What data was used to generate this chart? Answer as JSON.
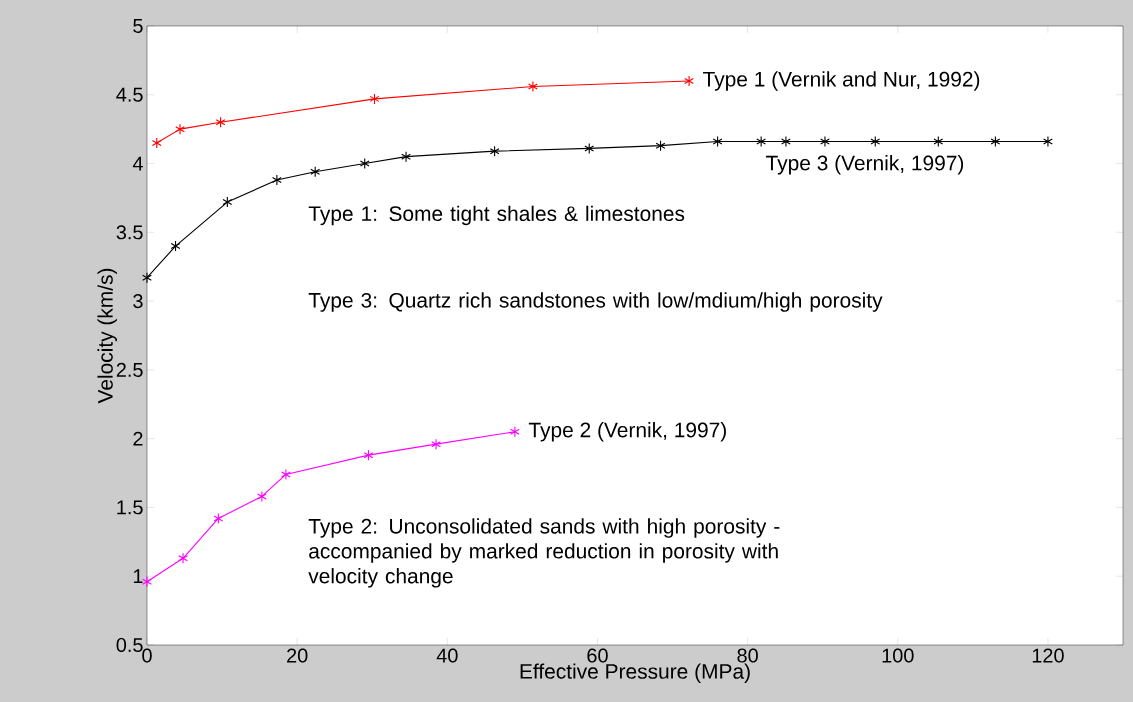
{
  "chart_data": {
    "type": "line",
    "xlabel": "Effective Pressure (MPa)",
    "ylabel": "Velocity (km/s)",
    "xlim": [
      0,
      130
    ],
    "ylim": [
      0.5,
      5
    ],
    "xticks": [
      0,
      20,
      40,
      60,
      80,
      100,
      120
    ],
    "yticks": [
      0.5,
      1,
      1.5,
      2,
      2.5,
      3,
      3.5,
      4,
      4.5,
      5
    ],
    "marker": "cross",
    "line_style": "solid",
    "grid": false,
    "legend": false,
    "series": [
      {
        "name": "Type 1 (Vernik and Nur, 1992)",
        "color": "#ff0000",
        "x": [
          1.3,
          4.4,
          9.8,
          30.3,
          51.4,
          72.2
        ],
        "values": [
          4.15,
          4.25,
          4.3,
          4.47,
          4.56,
          4.6
        ]
      },
      {
        "name": "Type 3 (Vernik, 1997)",
        "color": "#000000",
        "x": [
          0,
          3.8,
          10.7,
          17.3,
          22.4,
          29,
          34.5,
          46.3,
          58.9,
          68.4,
          76,
          81.8,
          85.1,
          90.3,
          97,
          105.4,
          113,
          120
        ],
        "values": [
          3.17,
          3.4,
          3.72,
          3.88,
          3.94,
          4.0,
          4.05,
          4.09,
          4.11,
          4.13,
          4.16,
          4.16,
          4.16,
          4.16,
          4.16,
          4.16,
          4.16,
          4.16
        ]
      },
      {
        "name": "Type 2 (Vernik, 1997)",
        "color": "#ff00ff",
        "x": [
          0,
          4.8,
          9.5,
          15.3,
          18.5,
          29.5,
          38.5,
          49
        ],
        "values": [
          0.96,
          1.13,
          1.42,
          1.58,
          1.74,
          1.88,
          1.96,
          2.05
        ]
      }
    ],
    "annotations": [
      "Type 1: Some tight shales & limestones",
      "Type 3: Quartz rich sandstones with low/mdium/high porosity",
      "Type 2: Unconsolidated sands with high porosity - accompanied by marked reduction in porosity with velocity change"
    ]
  }
}
